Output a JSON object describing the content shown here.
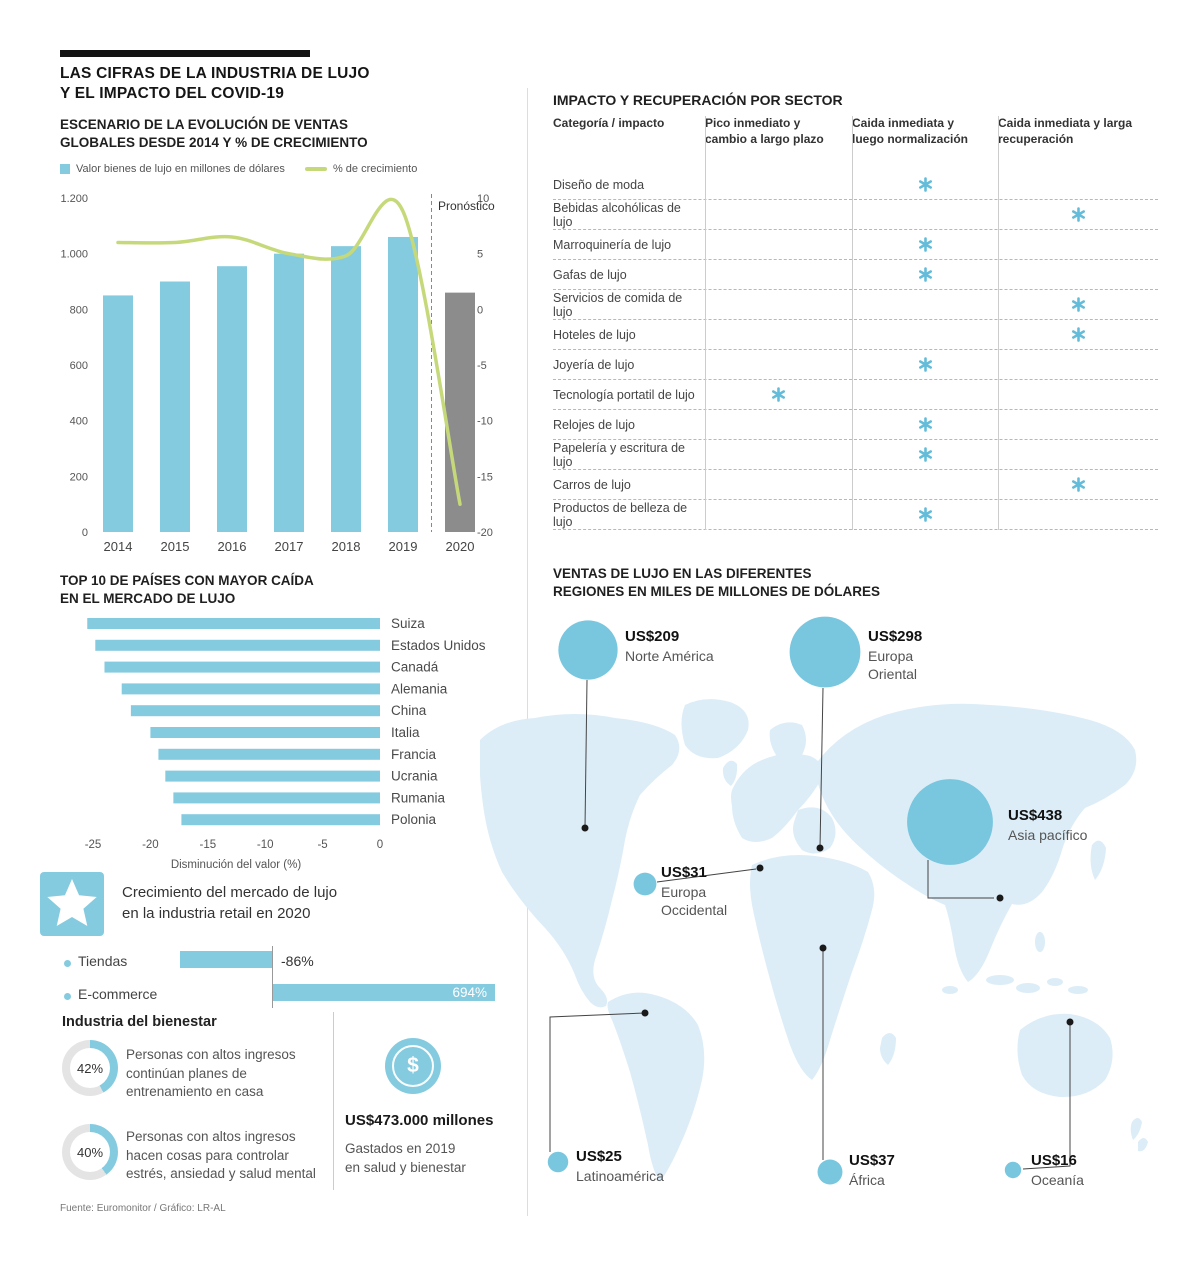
{
  "colors": {
    "accent_blue": "#85CBE0",
    "accent_dark": "#63BCD9",
    "bubble_blue": "#79C6DF",
    "map_fill": "#DCEDF7",
    "line_green": "#C6D97A",
    "bar_gray": "#8C8C8C"
  },
  "header": {
    "title_line1": "LAS CIFRAS DE LA INDUSTRIA DE LUJO",
    "title_line2": "Y EL IMPACTO DEL COVID-19"
  },
  "sales_section": {
    "title_line1": "ESCENARIO DE LA EVOLUCIÓN DE VENTAS",
    "title_line2": "GLOBALES DESDE 2014 Y % DE CRECIMIENTO",
    "legend_bar": "Valor bienes de lujo en millones de dólares",
    "legend_line": "% de crecimiento",
    "forecast_label": "Pronóstico"
  },
  "sector_section": {
    "title": "IMPACTO Y RECUPERACIÓN POR SECTOR",
    "col_headers": [
      "Categoría / impacto",
      "Pico inmediato y cambio a largo plazo",
      "Caida inmediata y luego normalización",
      "Caida inmediata y larga recuperación"
    ],
    "mark": "✱",
    "rows": [
      {
        "label": "Diseño de moda",
        "column": 2
      },
      {
        "label": "Bebidas alcohólicas de lujo",
        "column": 3
      },
      {
        "label": "Marroquinería de lujo",
        "column": 2
      },
      {
        "label": "Gafas de lujo",
        "column": 2
      },
      {
        "label": "Servicios de comida de lujo",
        "column": 3
      },
      {
        "label": "Hoteles de lujo",
        "column": 3
      },
      {
        "label": "Joyería de lujo",
        "column": 2
      },
      {
        "label": "Tecnología portatil de lujo",
        "column": 1
      },
      {
        "label": "Relojes de lujo",
        "column": 2
      },
      {
        "label": "Papelería y escritura de lujo",
        "column": 2
      },
      {
        "label": "Carros de lujo",
        "column": 3
      },
      {
        "label": "Productos de belleza de lujo",
        "column": 2
      }
    ]
  },
  "top10_section": {
    "title_line1": "TOP 10 DE PAÍSES CON MAYOR CAÍDA",
    "title_line2": "EN EL MERCADO DE LUJO",
    "axis_label": "Disminución del valor (%)"
  },
  "retail_growth": {
    "title_line1": "Crecimiento del mercado de lujo",
    "title_line2": "en la industria retail en 2020",
    "items": [
      {
        "label": "Tiendas",
        "value": "-86%"
      },
      {
        "label": "E-commerce",
        "value": "694%"
      }
    ]
  },
  "wellness": {
    "title": "Industria del bienestar",
    "dollar_sign": "$",
    "stats": [
      {
        "pct": "42%",
        "value": 42,
        "text": "Personas con altos ingresos continúan planes de entrenamiento en casa"
      },
      {
        "pct": "40%",
        "value": 40,
        "text": "Personas con altos ingresos hacen cosas para controlar estrés, ansiedad y salud mental"
      }
    ],
    "spend_value": "US$473.000 millones",
    "spend_caption_line1": "Gastados en 2019",
    "spend_caption_line2": "en salud y bienestar"
  },
  "map_section": {
    "title_line1": "VENTAS DE LUJO EN LAS DIFERENTES",
    "title_line2": "REGIONES EN MILES DE MILLONES DE DÓLARES"
  },
  "source": "Fuente: Euromonitor / Gráfico: LR-AL",
  "chart_data": [
    {
      "id": "sales-evolution",
      "type": "bar",
      "title": "Escenario de la evolución de ventas globales desde 2014 y % de crecimiento",
      "categories": [
        "2014",
        "2015",
        "2016",
        "2017",
        "2018",
        "2019",
        "2020"
      ],
      "series": [
        {
          "name": "Valor bienes de lujo en millones de dólares",
          "type": "bar",
          "values": [
            850,
            900,
            955,
            1000,
            1027,
            1060,
            860
          ]
        },
        {
          "name": "% de crecimiento",
          "type": "line",
          "values": [
            6,
            6,
            6.5,
            5,
            4.8,
            8.8,
            -17.5
          ]
        }
      ],
      "left_axis": {
        "min": 0,
        "max": 1200,
        "ticks": [
          {
            "value": 1200,
            "label": "1.200"
          },
          {
            "value": 1000,
            "label": "1.000"
          },
          {
            "value": 800,
            "label": "800"
          },
          {
            "value": 600,
            "label": "600"
          },
          {
            "value": 400,
            "label": "400"
          },
          {
            "value": 200,
            "label": "200"
          },
          {
            "value": 0,
            "label": "0"
          }
        ]
      },
      "right_axis": {
        "min": -20,
        "max": 10,
        "ticks": [
          {
            "value": 10,
            "label": "10"
          },
          {
            "value": 5,
            "label": "5"
          },
          {
            "value": 0,
            "label": "0"
          },
          {
            "value": -5,
            "label": "-5"
          },
          {
            "value": -10,
            "label": "-10"
          },
          {
            "value": -15,
            "label": "-15"
          },
          {
            "value": -20,
            "label": "-20"
          }
        ]
      },
      "forecast_category": "2020",
      "legend_position": "top"
    },
    {
      "id": "top10-fall",
      "type": "bar",
      "orientation": "horizontal",
      "title": "Top 10 de países con mayor caída en el mercado de lujo",
      "categories": [
        "Suiza",
        "Estados Unidos",
        "Canadá",
        "Alemania",
        "China",
        "Italia",
        "Francia",
        "Ucrania",
        "Rumania",
        "Polonia"
      ],
      "values": [
        -25.5,
        -24.8,
        -24,
        -22.5,
        -21.7,
        -20,
        -19.3,
        -18.7,
        -18,
        -17.3
      ],
      "xlabel": "Disminución del valor (%)",
      "xlim": [
        -25,
        0
      ],
      "xticks": [
        {
          "value": -25,
          "label": "-25"
        },
        {
          "value": -20,
          "label": "-20"
        },
        {
          "value": -15,
          "label": "-15"
        },
        {
          "value": -10,
          "label": "-10"
        },
        {
          "value": -5,
          "label": "-5"
        },
        {
          "value": 0,
          "label": "0"
        }
      ]
    },
    {
      "id": "retail-growth",
      "type": "bar",
      "orientation": "horizontal",
      "title": "Crecimiento del mercado de lujo en la industria retail en 2020",
      "categories": [
        "Tiendas",
        "E-commerce"
      ],
      "values": [
        -86,
        694
      ],
      "unit": "%"
    },
    {
      "id": "wellness-share",
      "type": "pie",
      "title": "Industria del bienestar",
      "items": [
        {
          "label": "Personas con altos ingresos continúan planes de entrenamiento en casa",
          "value": 42
        },
        {
          "label": "Personas con altos ingresos hacen cosas para controlar estrés, ansiedad y salud mental",
          "value": 40
        }
      ],
      "annotation": "US$473.000 millones gastados en 2019 en salud y bienestar"
    },
    {
      "id": "region-sales",
      "type": "bubble-map",
      "title": "Ventas de lujo en las diferentes regiones en miles de millones de dólares",
      "points": [
        {
          "name": "Norte América",
          "value": 209,
          "display": "US$209"
        },
        {
          "name": "Europa Oriental",
          "value": 298,
          "display": "US$298"
        },
        {
          "name": "Asia pacífico",
          "value": 438,
          "display": "US$438"
        },
        {
          "name": "Europa Occidental",
          "value": 31,
          "display": "US$31"
        },
        {
          "name": "Latinoamérica",
          "value": 25,
          "display": "US$25"
        },
        {
          "name": "África",
          "value": 37,
          "display": "US$37"
        },
        {
          "name": "Oceanía",
          "value": 16,
          "display": "US$16"
        }
      ]
    }
  ]
}
